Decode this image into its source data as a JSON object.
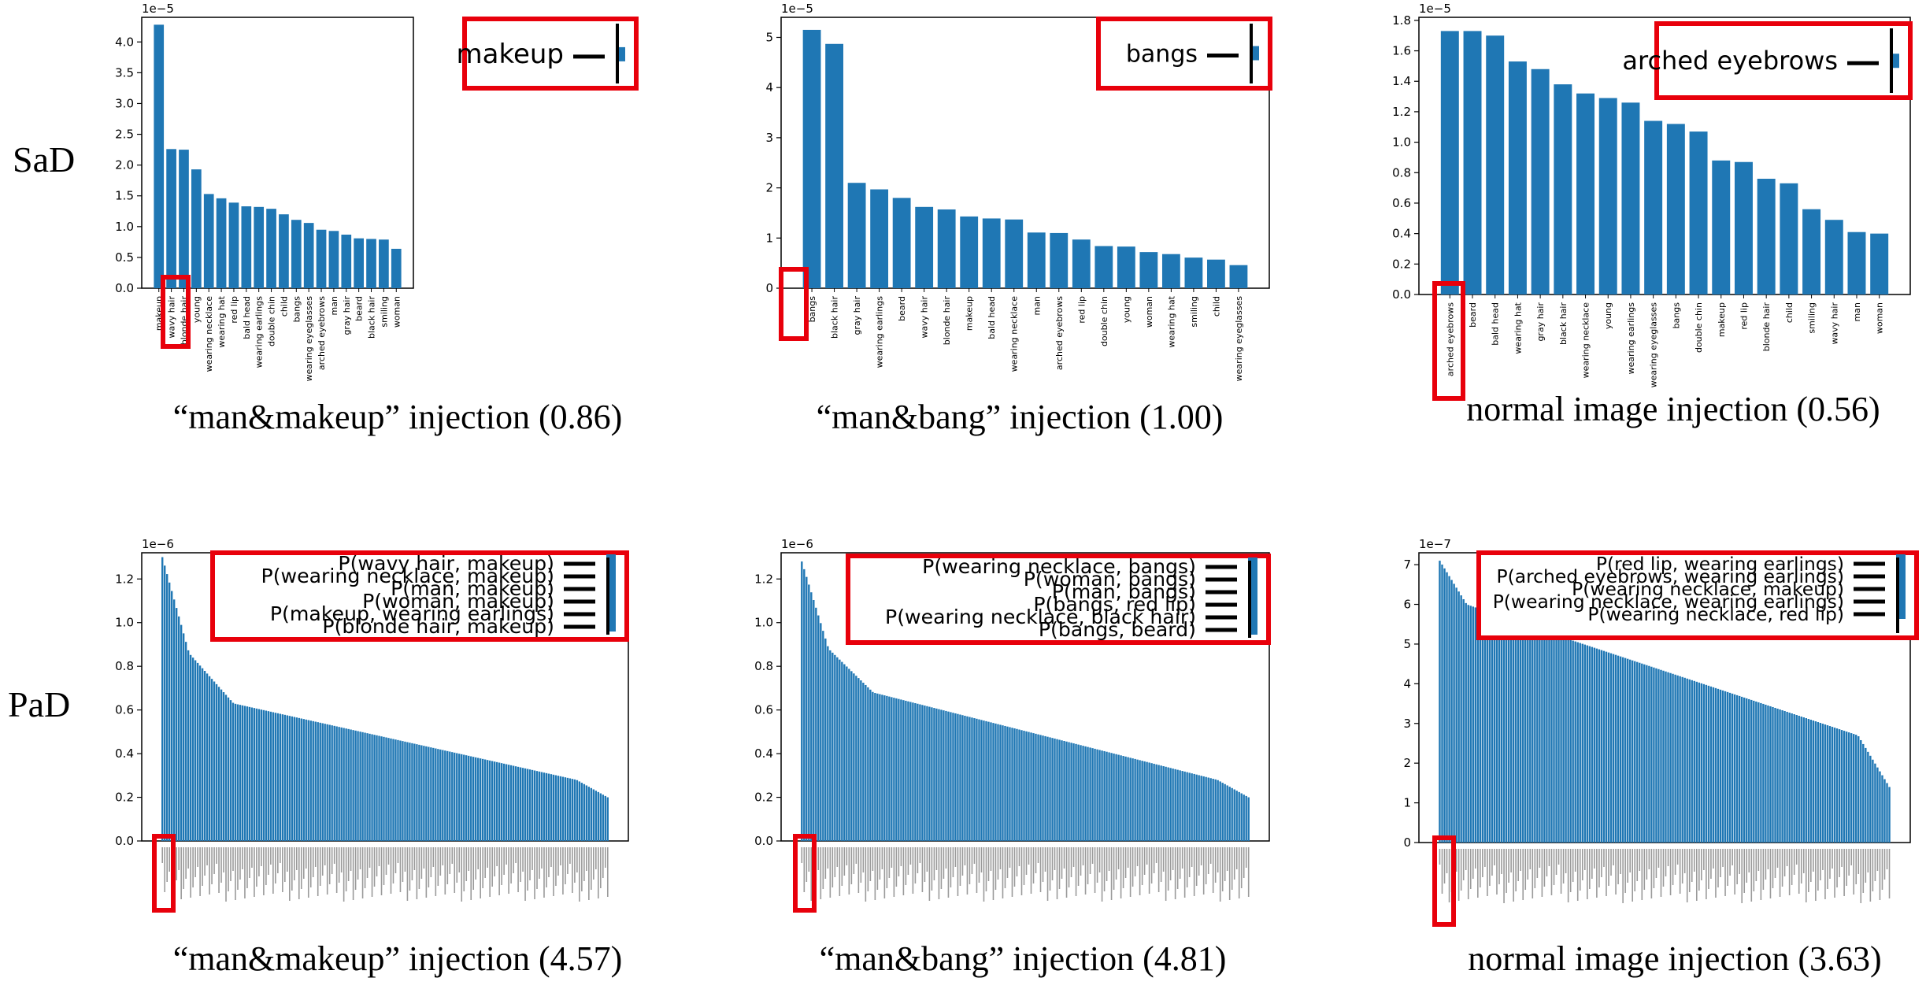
{
  "row_labels": {
    "sad": "SaD",
    "pad": "PaD"
  },
  "captions": [
    "“man&makeup” injection (0.86)",
    "“man&bang” injection (1.00)",
    "normal image injection (0.56)",
    "“man&makeup” injection (4.57)",
    "“man&bang” injection (4.81)",
    "normal image injection (3.63)"
  ],
  "colors": {
    "bar": "#1f77b4",
    "highlight": "#e8000b",
    "axis": "#000000"
  },
  "chart_data": [
    {
      "type": "bar",
      "exponent": "1e−5",
      "ylim": [
        0,
        4.4
      ],
      "yticks": [
        "0.0",
        "0.5",
        "1.0",
        "1.5",
        "2.0",
        "2.5",
        "3.0",
        "3.5",
        "4.0"
      ],
      "categories": [
        "makeup",
        "wavy hair",
        "blonde hair",
        "young",
        "wearing necklace",
        "wearing hat",
        "red lip",
        "bald head",
        "wearing earlings",
        "double chin",
        "child",
        "bangs",
        "wearing eyeglasses",
        "arched eyebrows",
        "man",
        "gray hair",
        "beard",
        "black hair",
        "smiling",
        "woman"
      ],
      "values": [
        4.28,
        2.26,
        2.25,
        1.93,
        1.53,
        1.46,
        1.39,
        1.33,
        1.32,
        1.29,
        1.2,
        1.11,
        1.06,
        0.95,
        0.93,
        0.87,
        0.81,
        0.8,
        0.79,
        0.64
      ],
      "legend": [
        "makeup"
      ],
      "grid": false
    },
    {
      "type": "bar",
      "exponent": "1e−5",
      "ylim": [
        0,
        5.4
      ],
      "yticks": [
        "0",
        "1",
        "2",
        "3",
        "4",
        "5"
      ],
      "categories": [
        "bangs",
        "black hair",
        "gray hair",
        "wearing earlings",
        "beard",
        "wavy hair",
        "blonde hair",
        "makeup",
        "bald head",
        "wearing necklace",
        "man",
        "arched eyebrows",
        "red lip",
        "double chin",
        "young",
        "woman",
        "wearing hat",
        "smiling",
        "child",
        "wearing eyeglasses"
      ],
      "values": [
        5.15,
        4.87,
        2.1,
        1.97,
        1.8,
        1.62,
        1.57,
        1.43,
        1.39,
        1.37,
        1.11,
        1.1,
        0.97,
        0.84,
        0.83,
        0.72,
        0.68,
        0.61,
        0.57,
        0.46
      ],
      "legend": [
        "bangs"
      ],
      "grid": false
    },
    {
      "type": "bar",
      "exponent": "1e−5",
      "ylim": [
        0,
        1.82
      ],
      "yticks": [
        "0.0",
        "0.2",
        "0.4",
        "0.6",
        "0.8",
        "1.0",
        "1.2",
        "1.4",
        "1.6",
        "1.8"
      ],
      "categories": [
        "arched eyebrows",
        "beard",
        "bald head",
        "wearing hat",
        "gray hair",
        "black hair",
        "wearing necklace",
        "young",
        "wearing earlings",
        "wearing eyeglasses",
        "bangs",
        "double chin",
        "makeup",
        "red lip",
        "blonde hair",
        "child",
        "smiling",
        "wavy hair",
        "man",
        "woman"
      ],
      "values": [
        1.73,
        1.73,
        1.7,
        1.53,
        1.48,
        1.38,
        1.32,
        1.29,
        1.26,
        1.14,
        1.12,
        1.07,
        0.88,
        0.87,
        0.76,
        0.73,
        0.56,
        0.49,
        0.41,
        0.4
      ],
      "legend": [
        "arched eyebrows"
      ],
      "grid": false
    },
    {
      "type": "bar",
      "exponent": "1e−6",
      "ylim": [
        0,
        1.32
      ],
      "yticks": [
        "0.0",
        "0.2",
        "0.4",
        "0.6",
        "0.8",
        "1.0",
        "1.2"
      ],
      "curve": {
        "n": 190,
        "start": 1.3,
        "knee": 0.86,
        "plateau_start": 0.63,
        "plateau_end": 0.28,
        "end": 0.2
      },
      "legend": [
        "P(wavy hair, makeup)",
        "P(wearing necklace, makeup)",
        "P(man, makeup)",
        "P(woman, makeup)",
        "P(makeup, wearing earlings)",
        "P(blonde hair, makeup)"
      ],
      "grid": false
    },
    {
      "type": "bar",
      "exponent": "1e−6",
      "ylim": [
        0,
        1.32
      ],
      "yticks": [
        "0.0",
        "0.2",
        "0.4",
        "0.6",
        "0.8",
        "1.0",
        "1.2"
      ],
      "curve": {
        "n": 190,
        "start": 1.28,
        "knee": 0.88,
        "plateau_start": 0.68,
        "plateau_end": 0.28,
        "end": 0.2
      },
      "legend": [
        "P(wearing necklace, bangs)",
        "P(woman, bangs)",
        "P(man, bangs)",
        "P(bangs, red lip)",
        "P(wearing necklace, black hair)",
        "P(bangs, beard)"
      ],
      "grid": false
    },
    {
      "type": "bar",
      "exponent": "1e−7",
      "ylim": [
        0,
        7.3
      ],
      "yticks": [
        "0",
        "1",
        "2",
        "3",
        "4",
        "5",
        "6",
        "7"
      ],
      "curve": {
        "n": 190,
        "start": 7.1,
        "knee": 6.0,
        "plateau_start": 5.6,
        "plateau_end": 2.7,
        "end": 1.4
      },
      "legend": [
        "P(red lip, wearing earlings)",
        "P(arched eyebrows, wearing earlings)",
        "P(wearing necklace, makeup)",
        "P(wearing necklace, wearing earlings)",
        "P(wearing necklace, red lip)"
      ],
      "grid": false
    }
  ]
}
